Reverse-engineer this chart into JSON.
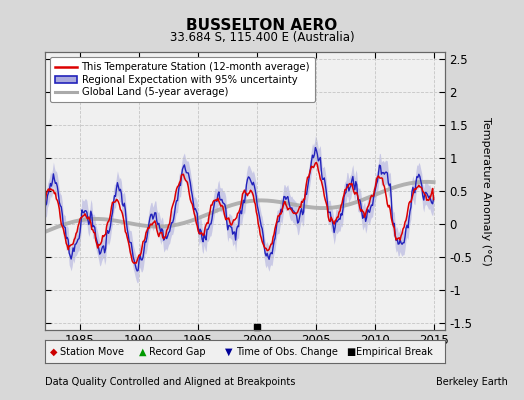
{
  "title": "BUSSELTON AERO",
  "subtitle": "33.684 S, 115.400 E (Australia)",
  "xlabel_bottom": "Data Quality Controlled and Aligned at Breakpoints",
  "xlabel_right": "Berkeley Earth",
  "ylabel": "Temperature Anomaly (°C)",
  "xlim": [
    1982,
    2016
  ],
  "ylim": [
    -1.6,
    2.6
  ],
  "yticks": [
    -1.5,
    -1.0,
    -0.5,
    0.0,
    0.5,
    1.0,
    1.5,
    2.0,
    2.5
  ],
  "xticks": [
    1985,
    1990,
    1995,
    2000,
    2005,
    2010,
    2015
  ],
  "bg_color": "#d8d8d8",
  "plot_bg_color": "#f0f0f0",
  "grid_color": "#bbbbbb",
  "station_color": "#dd0000",
  "regional_color": "#2222bb",
  "regional_fill_color": "#aaaadd",
  "global_color": "#aaaaaa",
  "legend_items": [
    "This Temperature Station (12-month average)",
    "Regional Expectation with 95% uncertainty",
    "Global Land (5-year average)"
  ],
  "empirical_break_x": 2000.0,
  "marker_sm_color": "#cc0000",
  "marker_rg_color": "#009900",
  "marker_to_color": "#000099",
  "marker_eb_color": "#000000"
}
